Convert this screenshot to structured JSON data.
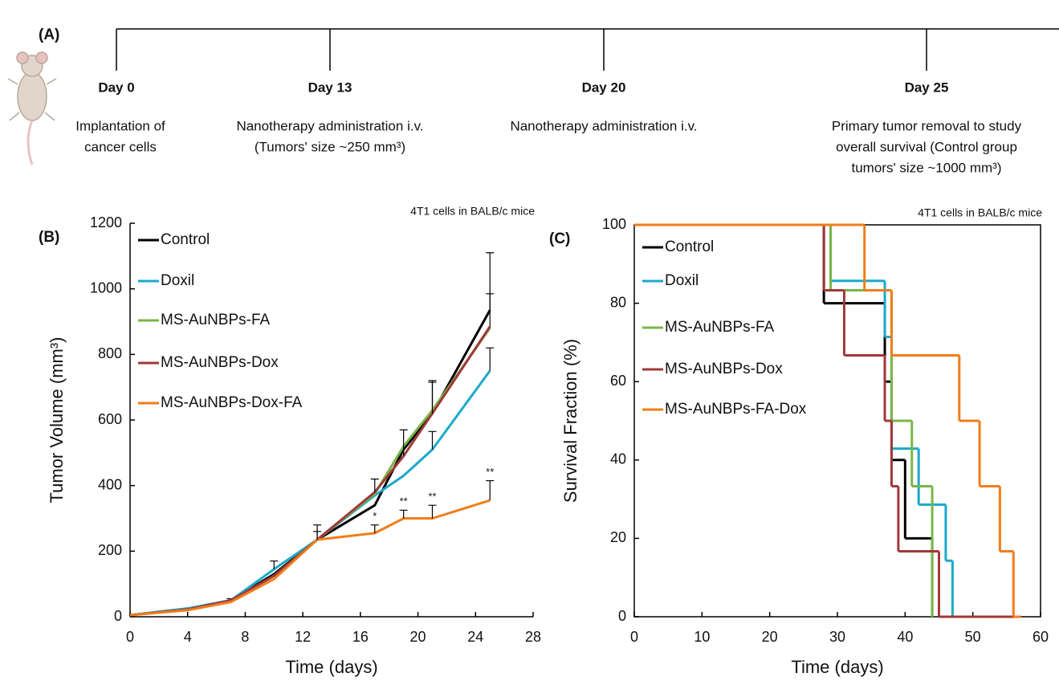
{
  "timeline": {
    "label": "(A)",
    "events": [
      {
        "day": "Day 0",
        "lines": [
          "Implantation of",
          "cancer cells"
        ]
      },
      {
        "day": "Day 13",
        "lines": [
          "Nanotherapy administration i.v.",
          "(Tumors' size ~250 mm³)"
        ]
      },
      {
        "day": "Day 20",
        "lines": [
          "Nanotherapy administration i.v."
        ]
      },
      {
        "day": "Day 25",
        "lines": [
          "Primary tumor removal to study",
          "overall survival (Control group",
          "tumors' size ~1000 mm³)"
        ]
      }
    ]
  },
  "chart_data": [
    {
      "type": "line",
      "panel": "(B)",
      "subtitle": "4T1 cells in BALB/c mice",
      "xlabel": "Time (days)",
      "ylabel": "Tumor Volume (mm³)",
      "x": [
        0,
        4,
        7,
        10,
        13,
        17,
        19,
        21,
        25
      ],
      "xlim": [
        0,
        28
      ],
      "xticks": [
        0,
        4,
        8,
        12,
        16,
        20,
        24,
        28
      ],
      "ylim": [
        0,
        1200
      ],
      "yticks": [
        0,
        200,
        400,
        600,
        800,
        1000,
        1200
      ],
      "legend": "upper left",
      "series": [
        {
          "name": "Control",
          "color": "#000000",
          "values": [
            5,
            25,
            50,
            130,
            235,
            340,
            510,
            620,
            935
          ],
          "errors": [
            null,
            null,
            5,
            null,
            25,
            null,
            null,
            95,
            175
          ]
        },
        {
          "name": "Doxil",
          "color": "#1ba9c9",
          "values": [
            5,
            25,
            50,
            145,
            235,
            370,
            430,
            510,
            750
          ],
          "errors": [
            null,
            null,
            null,
            25,
            null,
            null,
            null,
            55,
            70
          ]
        },
        {
          "name": "MS-AuNBPs-FA",
          "color": "#7ab648",
          "values": [
            5,
            22,
            48,
            125,
            235,
            375,
            520,
            630,
            880
          ],
          "errors": [
            null,
            null,
            null,
            null,
            null,
            null,
            null,
            null,
            105
          ]
        },
        {
          "name": "MS-AuNBPs-Dox",
          "color": "#a0393a",
          "values": [
            5,
            22,
            50,
            125,
            235,
            380,
            490,
            620,
            885
          ],
          "errors": [
            null,
            null,
            null,
            null,
            null,
            40,
            80,
            100,
            null
          ]
        },
        {
          "name": "MS-AuNBPs-Dox-FA",
          "color": "#f07d1a",
          "values": [
            5,
            20,
            45,
            115,
            235,
            255,
            300,
            300,
            355
          ],
          "errors": [
            null,
            null,
            null,
            null,
            45,
            25,
            25,
            40,
            60
          ],
          "significance": [
            {
              "x": 17,
              "label": "*"
            },
            {
              "x": 19,
              "label": "**"
            },
            {
              "x": 21,
              "label": "**"
            },
            {
              "x": 25,
              "label": "**"
            }
          ]
        }
      ]
    },
    {
      "type": "step",
      "panel": "(C)",
      "subtitle": "4T1 cells in BALB/c mice",
      "xlabel": "Time (days)",
      "ylabel": "Survival Fraction (%)",
      "xlim": [
        0,
        60
      ],
      "xticks": [
        0,
        10,
        20,
        30,
        40,
        50,
        60
      ],
      "ylim": [
        0,
        100
      ],
      "yticks": [
        0,
        20,
        40,
        60,
        80,
        100
      ],
      "legend": "upper left",
      "series": [
        {
          "name": "Control",
          "color": "#000000",
          "x": [
            0,
            28,
            37,
            38,
            40,
            44
          ],
          "values": [
            100,
            80,
            60,
            40,
            20,
            0
          ]
        },
        {
          "name": "Doxil",
          "color": "#1ba9c9",
          "x": [
            0,
            29,
            37,
            38,
            42,
            46,
            47
          ],
          "values": [
            100,
            85.7,
            71.4,
            42.9,
            28.6,
            14.3,
            0
          ]
        },
        {
          "name": "MS-AuNBPs-FA",
          "color": "#7ab648",
          "x": [
            0,
            29,
            38,
            41,
            44
          ],
          "values": [
            100,
            83.3,
            50,
            33.3,
            0
          ]
        },
        {
          "name": "MS-AuNBPs-Dox",
          "color": "#a0393a",
          "x": [
            0,
            28,
            31,
            37,
            38,
            39,
            45,
            57
          ],
          "values": [
            100,
            83.3,
            66.7,
            50,
            33.3,
            16.7,
            0,
            0
          ]
        },
        {
          "name": "MS-AuNBPs-FA-Dox",
          "color": "#f07d1a",
          "x": [
            0,
            34,
            38,
            48,
            51,
            54,
            56,
            57
          ],
          "values": [
            100,
            83.3,
            66.7,
            50,
            33.3,
            16.7,
            0,
            0
          ]
        }
      ]
    }
  ]
}
